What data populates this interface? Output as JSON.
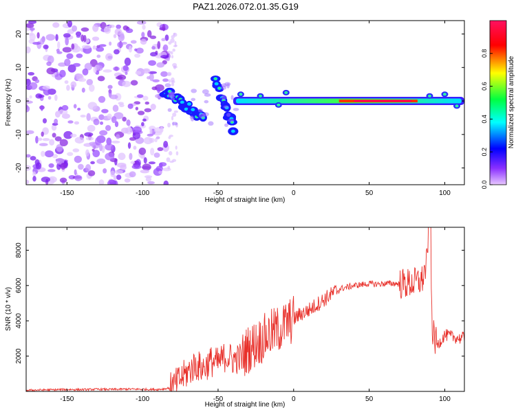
{
  "figure": {
    "title": "PAZ1.2026.072.01.35.G19"
  },
  "chart_data": [
    {
      "type": "heatmap",
      "title": "PAZ1.2026.072.01.35.G19",
      "xlabel": "Height of straight line (km)",
      "ylabel": "Frequency (Hz)",
      "xlim": [
        -177,
        113
      ],
      "ylim": [
        -25,
        24
      ],
      "xticks": [
        -150,
        -100,
        -50,
        0,
        50,
        100
      ],
      "yticks": [
        -20,
        -10,
        0,
        10,
        20
      ],
      "colorbar": {
        "label": "Normalized spectral amplitude",
        "range": [
          0,
          1
        ],
        "ticks": [
          0.0,
          0.2,
          0.4,
          0.6,
          0.8
        ],
        "colormap": [
          "#e0b0ff",
          "#6000ff",
          "#0000ff",
          "#00ffff",
          "#00ff00",
          "#ffff00",
          "#ff0000",
          "#ff0080"
        ]
      },
      "features": {
        "noise_region_x": [
          -177,
          -83
        ],
        "tracks": [
          {
            "x": [
              -85,
              -60
            ],
            "freq": [
              3,
              -5
            ]
          },
          {
            "x": [
              -52,
              -40
            ],
            "freq": [
              6,
              -8
            ]
          },
          {
            "x": [
              -40,
              113
            ],
            "freq": [
              0,
              0
            ]
          }
        ]
      }
    },
    {
      "type": "line",
      "xlabel": "Height of straight line (km)",
      "ylabel": "SNR (10 * v/v)",
      "xlim": [
        -177,
        113
      ],
      "ylim": [
        0,
        9300
      ],
      "xticks": [
        -150,
        -100,
        -50,
        0,
        50,
        100
      ],
      "yticks": [
        2000,
        4000,
        6000,
        8000
      ],
      "series": [
        {
          "name": "SNR",
          "color": "#e8302a",
          "x": [
            -177,
            -170,
            -160,
            -150,
            -140,
            -130,
            -120,
            -110,
            -100,
            -90,
            -85,
            -80,
            -75,
            -70,
            -65,
            -60,
            -55,
            -50,
            -45,
            -40,
            -35,
            -30,
            -25,
            -20,
            -15,
            -10,
            -5,
            0,
            5,
            10,
            15,
            20,
            25,
            30,
            35,
            40,
            45,
            50,
            55,
            60,
            65,
            70,
            75,
            80,
            85,
            88,
            90,
            92,
            95,
            100,
            105,
            110,
            113
          ],
          "y": [
            60,
            80,
            90,
            110,
            100,
            120,
            110,
            130,
            120,
            110,
            150,
            250,
            700,
            1100,
            1500,
            1300,
            1700,
            1600,
            2000,
            1800,
            1900,
            2400,
            2700,
            3000,
            3300,
            3500,
            3800,
            4100,
            4400,
            4600,
            4900,
            5200,
            5500,
            5800,
            5900,
            6000,
            6050,
            6100,
            6080,
            6100,
            6120,
            6100,
            6100,
            6150,
            6300,
            7200,
            8500,
            3300,
            2600,
            3200,
            3100,
            3000,
            3050
          ]
        }
      ]
    }
  ]
}
